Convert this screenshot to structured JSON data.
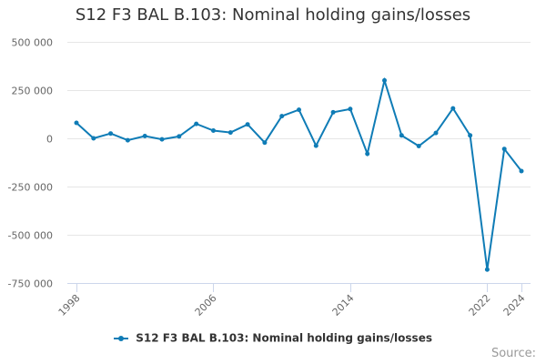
{
  "colors": {
    "series": "#0f7cb6"
  },
  "credits": "Source:",
  "chart_data": {
    "type": "line",
    "title": "S12 F3 BAL B.103: Nominal holding gains/losses",
    "xlabel": "",
    "ylabel": "",
    "x": [
      1998,
      1999,
      2000,
      2001,
      2002,
      2003,
      2004,
      2005,
      2006,
      2007,
      2008,
      2009,
      2010,
      2011,
      2012,
      2013,
      2014,
      2015,
      2016,
      2017,
      2018,
      2019,
      2020,
      2021,
      2022,
      2023,
      2024
    ],
    "x_tick_values": [
      1998,
      2006,
      2014,
      2022,
      2024
    ],
    "x_tick_labels": [
      "1998",
      "2006",
      "2014",
      "2022",
      "2024"
    ],
    "y_tick_values": [
      500000,
      250000,
      0,
      -250000,
      -500000,
      -750000
    ],
    "y_tick_labels": [
      "500 000",
      "250 000",
      "0",
      "-250 000",
      "-500 000",
      "-750 000"
    ],
    "ylim": [
      -750000,
      500000
    ],
    "xlim": [
      1998,
      2024
    ],
    "grid": true,
    "legend_position": "bottom-center",
    "series": [
      {
        "name": "S12 F3 BAL B.103: Nominal holding gains/losses",
        "values": [
          80000,
          0,
          25000,
          -10000,
          12000,
          -5000,
          10000,
          75000,
          40000,
          30000,
          72000,
          -22000,
          115000,
          148000,
          -38000,
          135000,
          152000,
          -80000,
          300000,
          15000,
          -40000,
          28000,
          155000,
          15000,
          -680000,
          -55000,
          -170000
        ]
      }
    ]
  }
}
